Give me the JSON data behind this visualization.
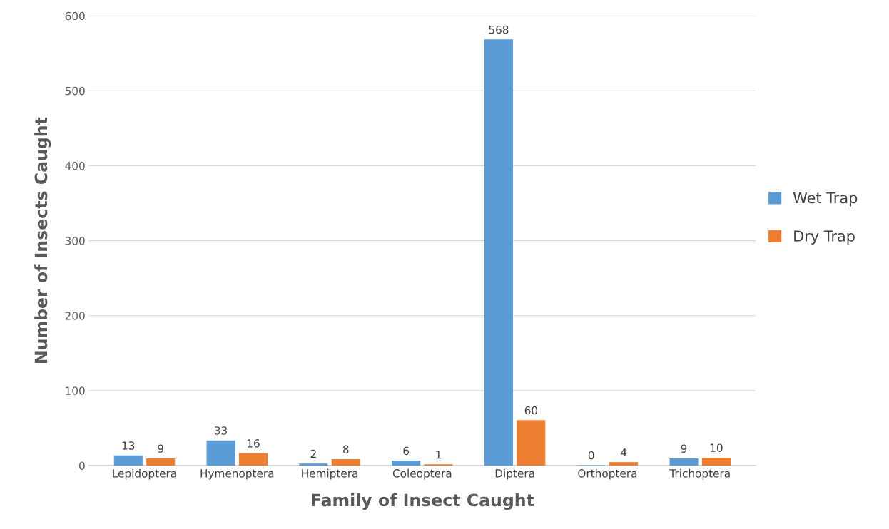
{
  "chart_data": {
    "type": "bar",
    "xlabel": "Family of Insect Caught",
    "ylabel": "Number of Insects Caught",
    "categories": [
      "Lepidoptera",
      "Hymenoptera",
      "Hemiptera",
      "Coleoptera",
      "Diptera",
      "Orthoptera",
      "Trichoptera"
    ],
    "series": [
      {
        "name": "Wet Trap",
        "color": "#5b9bd5",
        "values": [
          13,
          33,
          2,
          6,
          568,
          0,
          9
        ]
      },
      {
        "name": "Dry Trap",
        "color": "#ed7d31",
        "values": [
          9,
          16,
          8,
          1,
          60,
          4,
          10
        ]
      }
    ],
    "ylim": [
      0,
      600
    ],
    "yticks": [
      0,
      100,
      200,
      300,
      400,
      500,
      600
    ],
    "grid": "y",
    "legend": "right",
    "data_labels": true
  }
}
